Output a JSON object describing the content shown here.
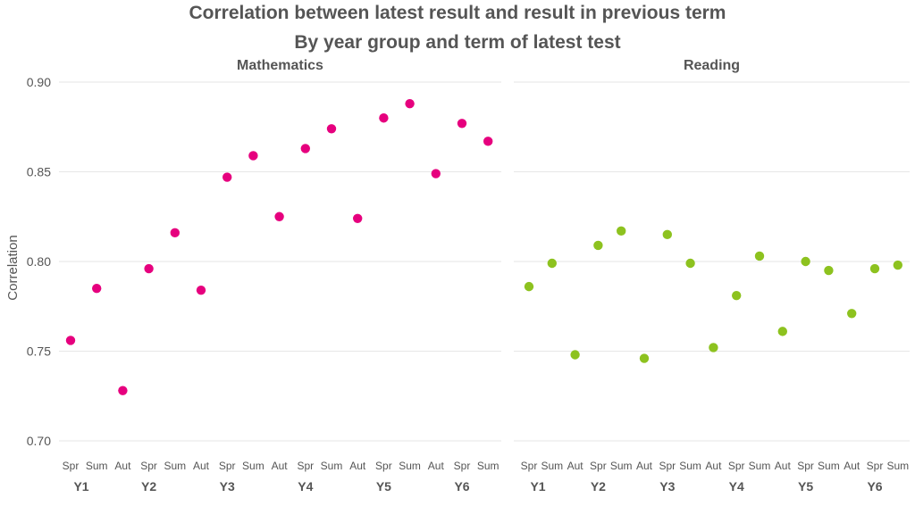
{
  "title": "Correlation between latest result and result in previous term",
  "subtitle": "By year group and term of latest test",
  "chart_data": {
    "type": "scatter",
    "ylabel": "Correlation",
    "ylim": [
      0.695,
      0.905
    ],
    "yticks": [
      "0.70",
      "0.75",
      "0.80",
      "0.85",
      "0.90"
    ],
    "grid": true,
    "panels": [
      {
        "name": "Mathematics",
        "color": "#e6007e",
        "x": [
          "Spr",
          "Sum",
          "Aut",
          "Spr",
          "Sum",
          "Aut",
          "Spr",
          "Sum",
          "Aut",
          "Spr",
          "Sum",
          "Aut",
          "Spr",
          "Sum",
          "Aut",
          "Spr",
          "Sum"
        ],
        "years": [
          "Y1",
          "Y2",
          "Y3",
          "Y4",
          "Y5",
          "Y6"
        ],
        "values": [
          0.756,
          0.785,
          0.728,
          0.796,
          0.816,
          0.784,
          0.847,
          0.859,
          0.825,
          0.863,
          0.874,
          0.824,
          0.88,
          0.888,
          0.849,
          0.877,
          0.867
        ]
      },
      {
        "name": "Reading",
        "color": "#8dc21f",
        "x": [
          "Spr",
          "Sum",
          "Aut",
          "Spr",
          "Sum",
          "Aut",
          "Spr",
          "Sum",
          "Aut",
          "Spr",
          "Sum",
          "Aut",
          "Spr",
          "Sum",
          "Aut",
          "Spr",
          "Sum"
        ],
        "years": [
          "Y1",
          "Y2",
          "Y3",
          "Y4",
          "Y5",
          "Y6"
        ],
        "values": [
          0.786,
          0.799,
          0.748,
          0.809,
          0.817,
          0.746,
          0.815,
          0.799,
          0.752,
          0.781,
          0.803,
          0.761,
          0.8,
          0.795,
          0.771,
          0.796,
          0.798
        ]
      }
    ]
  }
}
